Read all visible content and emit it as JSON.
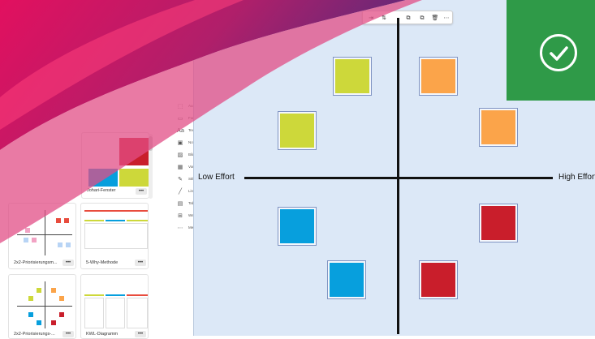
{
  "canvas": {
    "axis_left_label": "Low Effort",
    "axis_right_label": "High Effort"
  },
  "colors": {
    "lime": "#cdd83a",
    "orange": "#fba44a",
    "blue": "#079fdd",
    "red": "#c91e2b",
    "badge_green": "#2f9a48",
    "canvas_bg": "#dce8f7"
  },
  "notes": [
    {
      "color": "lime"
    },
    {
      "color": "orange"
    },
    {
      "color": "lime"
    },
    {
      "color": "orange"
    },
    {
      "color": "blue"
    },
    {
      "color": "red"
    },
    {
      "color": "blue"
    },
    {
      "color": "red"
    }
  ],
  "toolbar": {
    "items": [
      {
        "icon": "align-icon",
        "glyph": "⇥"
      },
      {
        "icon": "arrange-icon",
        "glyph": "⇅"
      },
      {
        "icon": "bring-forward-icon",
        "glyph": "⧉"
      },
      {
        "icon": "send-backward-icon",
        "glyph": "⧉"
      },
      {
        "icon": "delete-icon",
        "glyph": "🗑"
      },
      {
        "icon": "more-icon",
        "glyph": "⋯"
      }
    ]
  },
  "tools": [
    {
      "icon": "select-icon",
      "glyph": "⬚",
      "label": "Auswählen"
    },
    {
      "icon": "shape-icon",
      "glyph": "▭",
      "label": "Form"
    },
    {
      "icon": "text-icon",
      "glyph": "Aa",
      "label": "Text"
    },
    {
      "icon": "note-icon",
      "glyph": "▣",
      "label": "Notiz"
    },
    {
      "icon": "image-icon",
      "glyph": "▨",
      "label": "Bild"
    },
    {
      "icon": "template-icon",
      "glyph": "▦",
      "label": "Vorlagen"
    },
    {
      "icon": "pen-icon",
      "glyph": "✎",
      "label": "Stift"
    },
    {
      "icon": "line-icon",
      "glyph": "╱",
      "label": "Linie"
    },
    {
      "icon": "table-icon",
      "glyph": "▤",
      "label": "Tabelle"
    },
    {
      "icon": "more-tools-icon",
      "glyph": "⊞",
      "label": "Weiteres"
    },
    {
      "icon": "more-icon",
      "glyph": "⋯",
      "label": "Mehr"
    }
  ],
  "templates": [
    {
      "label": "Johari-Fenster",
      "more": "•••"
    },
    {
      "label": "2x2-Priorisierungsm...",
      "more": "•••"
    },
    {
      "label": "5-Why-Methode",
      "more": "•••"
    },
    {
      "label": "2x2-Priorisierungs-...",
      "more": "•••"
    },
    {
      "label": "KWL-Diagramm",
      "more": "•••"
    }
  ]
}
